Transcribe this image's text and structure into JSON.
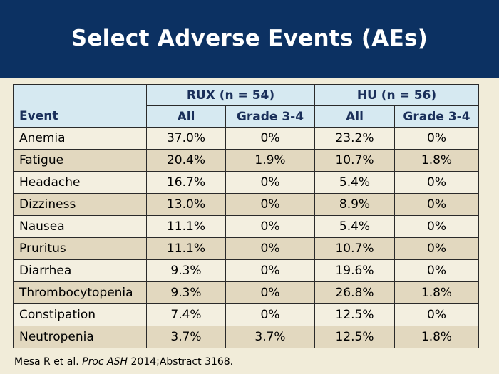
{
  "slide": {
    "title": "Select Adverse Events (AEs)"
  },
  "table": {
    "event_header": "Event",
    "groups": [
      {
        "label": "RUX (n = 54)"
      },
      {
        "label": "HU (n = 56)"
      }
    ],
    "subheaders": [
      "All",
      "Grade 3-4",
      "All",
      "Grade 3-4"
    ],
    "rows": [
      {
        "event": "Anemia",
        "rux_all": "37.0%",
        "rux_g34": "0%",
        "hu_all": "23.2%",
        "hu_g34": "0%"
      },
      {
        "event": "Fatigue",
        "rux_all": "20.4%",
        "rux_g34": "1.9%",
        "hu_all": "10.7%",
        "hu_g34": "1.8%"
      },
      {
        "event": "Headache",
        "rux_all": "16.7%",
        "rux_g34": "0%",
        "hu_all": "5.4%",
        "hu_g34": "0%"
      },
      {
        "event": "Dizziness",
        "rux_all": "13.0%",
        "rux_g34": "0%",
        "hu_all": "8.9%",
        "hu_g34": "0%"
      },
      {
        "event": "Nausea",
        "rux_all": "11.1%",
        "rux_g34": "0%",
        "hu_all": "5.4%",
        "hu_g34": "0%"
      },
      {
        "event": "Pruritus",
        "rux_all": "11.1%",
        "rux_g34": "0%",
        "hu_all": "10.7%",
        "hu_g34": "0%"
      },
      {
        "event": "Diarrhea",
        "rux_all": "9.3%",
        "rux_g34": "0%",
        "hu_all": "19.6%",
        "hu_g34": "0%"
      },
      {
        "event": "Thrombocytopenia",
        "rux_all": "9.3%",
        "rux_g34": "0%",
        "hu_all": "26.8%",
        "hu_g34": "1.8%"
      },
      {
        "event": "Constipation",
        "rux_all": "7.4%",
        "rux_g34": "0%",
        "hu_all": "12.5%",
        "hu_g34": "0%"
      },
      {
        "event": "Neutropenia",
        "rux_all": "3.7%",
        "rux_g34": "3.7%",
        "hu_all": "12.5%",
        "hu_g34": "1.8%"
      }
    ]
  },
  "footnote": {
    "authors": "Mesa R et al.",
    "journal": "Proc ASH",
    "citation": "2014;Abstract 3168."
  },
  "colors": {
    "header_bg": "#0c3162",
    "slide_bg": "#f1ecd9",
    "table_head_bg": "#d6e9f1",
    "row_light": "#f3efe0",
    "row_dark": "#e2d8bf"
  }
}
